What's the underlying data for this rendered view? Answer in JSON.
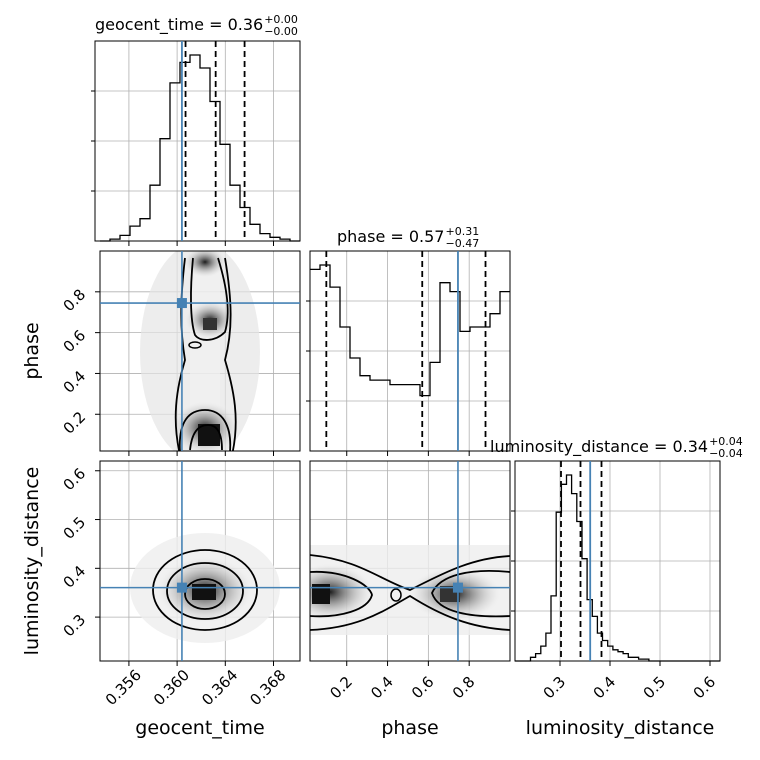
{
  "chart_data": {
    "type": "corner",
    "parameters": [
      {
        "name": "geocent_time",
        "title": "geocent_time = 0.36",
        "err_plus": "+0.00",
        "err_minus": "−0.00",
        "range": [
          0.3536,
          0.3702
        ],
        "ticks": [
          0.356,
          0.36,
          0.364,
          0.368
        ],
        "tick_labels": [
          "0.356",
          "0.360",
          "0.364",
          "0.368"
        ],
        "truth": 0.3604,
        "quantiles": [
          0.3607,
          0.3632,
          0.3656
        ]
      },
      {
        "name": "phase",
        "title": "phase = 0.57",
        "err_plus": "+0.31",
        "err_minus": "−0.47",
        "range": [
          0.02,
          1.0
        ],
        "ticks": [
          0.2,
          0.4,
          0.6,
          0.8
        ],
        "tick_labels": [
          "0.2",
          "0.4",
          "0.6",
          "0.8"
        ],
        "truth": 0.745,
        "quantiles": [
          0.1,
          0.57,
          0.88
        ]
      },
      {
        "name": "luminosity_distance",
        "title": "luminosity_distance = 0.34",
        "err_plus": "+0.04",
        "err_minus": "−0.04",
        "range": [
          0.21,
          0.62
        ],
        "ticks": [
          0.3,
          0.4,
          0.5,
          0.6
        ],
        "tick_labels": [
          "0.3",
          "0.4",
          "0.5",
          "0.6"
        ],
        "truth": 0.3604,
        "quantiles": [
          0.302,
          0.341,
          0.383
        ]
      }
    ],
    "histograms": [
      {
        "param": "geocent_time",
        "x0": 0.3536,
        "bin_width": 0.00083,
        "counts": [
          0,
          1,
          3,
          8,
          12,
          30,
          55,
          85,
          96,
          100,
          93,
          75,
          52,
          30,
          18,
          9,
          4,
          2,
          1,
          0
        ]
      },
      {
        "param": "phase",
        "x0": 0.02,
        "bin_width": 0.049,
        "counts": [
          82,
          84,
          74,
          56,
          42,
          34,
          32,
          32,
          30,
          30,
          30,
          25,
          40,
          76,
          72,
          54,
          56,
          56,
          62,
          72
        ]
      },
      {
        "param": "luminosity_distance",
        "x0": 0.21,
        "bin_width": 0.0103,
        "counts": [
          0,
          0,
          0,
          2,
          4,
          8,
          15,
          35,
          80,
          95,
          100,
          90,
          75,
          55,
          33,
          24,
          15,
          11,
          8,
          6,
          5,
          4,
          2,
          2,
          1,
          1,
          0,
          0,
          0,
          0,
          0,
          0,
          0,
          0,
          0,
          0,
          0,
          0,
          0,
          0
        ]
      }
    ],
    "contour_pairs": [
      {
        "x": "geocent_time",
        "y": "phase"
      },
      {
        "x": "geocent_time",
        "y": "luminosity_distance"
      },
      {
        "x": "phase",
        "y": "luminosity_distance"
      }
    ],
    "truth_color": "#4682b4",
    "line_color": "#000000",
    "grid": true
  }
}
